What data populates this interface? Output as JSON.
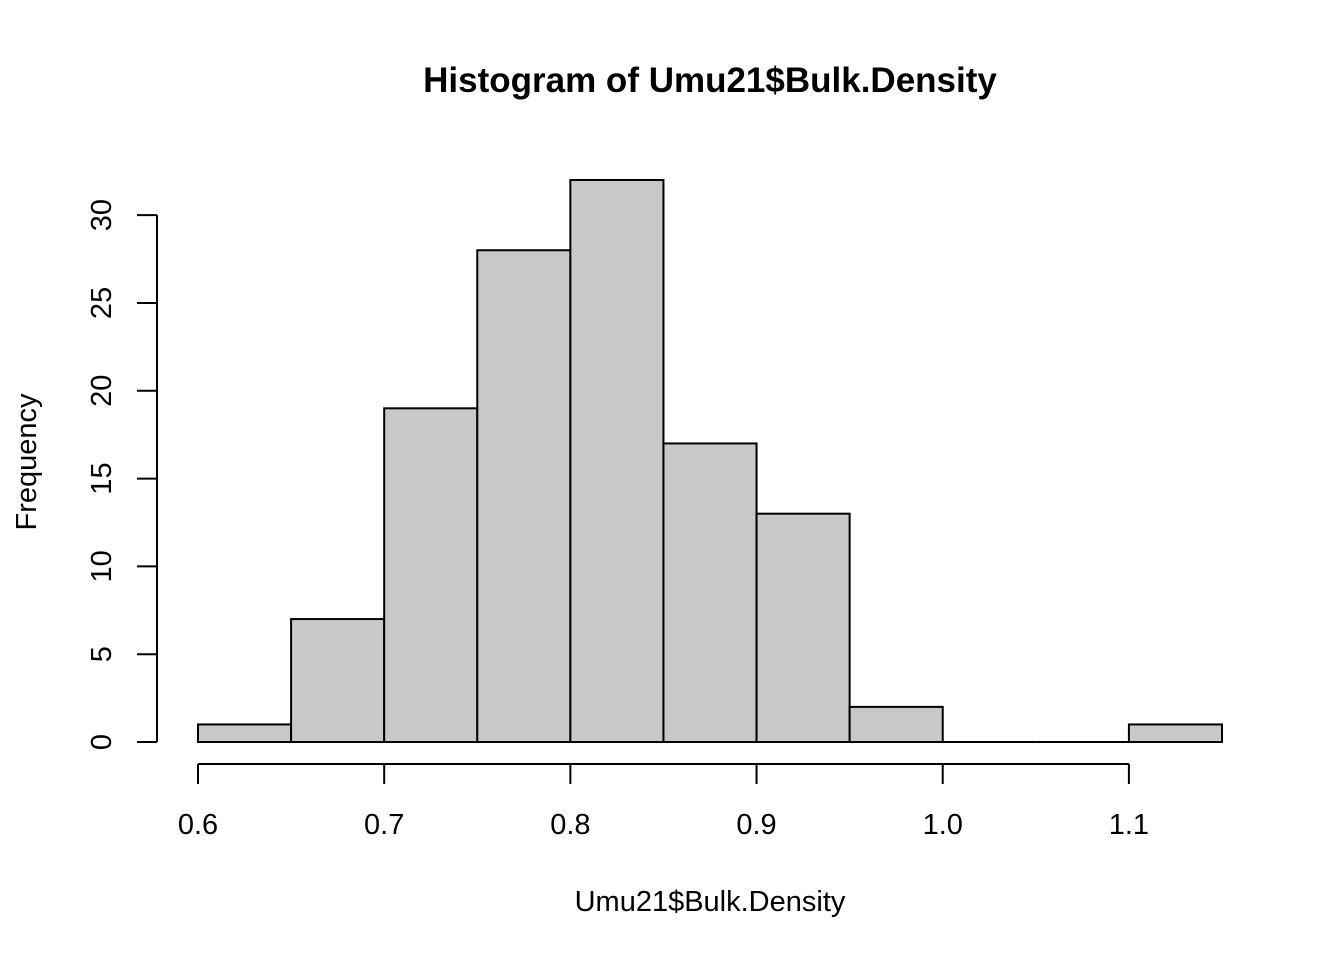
{
  "chart_data": {
    "type": "bar",
    "title": "Histogram of Umu21$Bulk.Density",
    "xlabel": "Umu21$Bulk.Density",
    "ylabel": "Frequency",
    "bins": [
      {
        "from": 0.6,
        "to": 0.65,
        "count": 1
      },
      {
        "from": 0.65,
        "to": 0.7,
        "count": 7
      },
      {
        "from": 0.7,
        "to": 0.75,
        "count": 19
      },
      {
        "from": 0.75,
        "to": 0.8,
        "count": 28
      },
      {
        "from": 0.8,
        "to": 0.85,
        "count": 32
      },
      {
        "from": 0.85,
        "to": 0.9,
        "count": 17
      },
      {
        "from": 0.9,
        "to": 0.95,
        "count": 13
      },
      {
        "from": 0.95,
        "to": 1.0,
        "count": 2
      },
      {
        "from": 1.0,
        "to": 1.05,
        "count": 0
      },
      {
        "from": 1.05,
        "to": 1.1,
        "count": 0
      },
      {
        "from": 1.1,
        "to": 1.15,
        "count": 1
      }
    ],
    "xticks": [
      0.6,
      0.7,
      0.8,
      0.9,
      1.0,
      1.1
    ],
    "xtick_labels": [
      "0.6",
      "0.7",
      "0.8",
      "0.9",
      "1.0",
      "1.1"
    ],
    "yticks": [
      0,
      5,
      10,
      15,
      20,
      25,
      30
    ],
    "ytick_labels": [
      "0",
      "5",
      "10",
      "15",
      "20",
      "25",
      "30"
    ],
    "xlim": [
      0.6,
      1.15
    ],
    "ylim": [
      0,
      32
    ],
    "grid": false,
    "colors": {
      "bar_fill": "#c8c8c8",
      "bar_stroke": "#000000"
    }
  }
}
